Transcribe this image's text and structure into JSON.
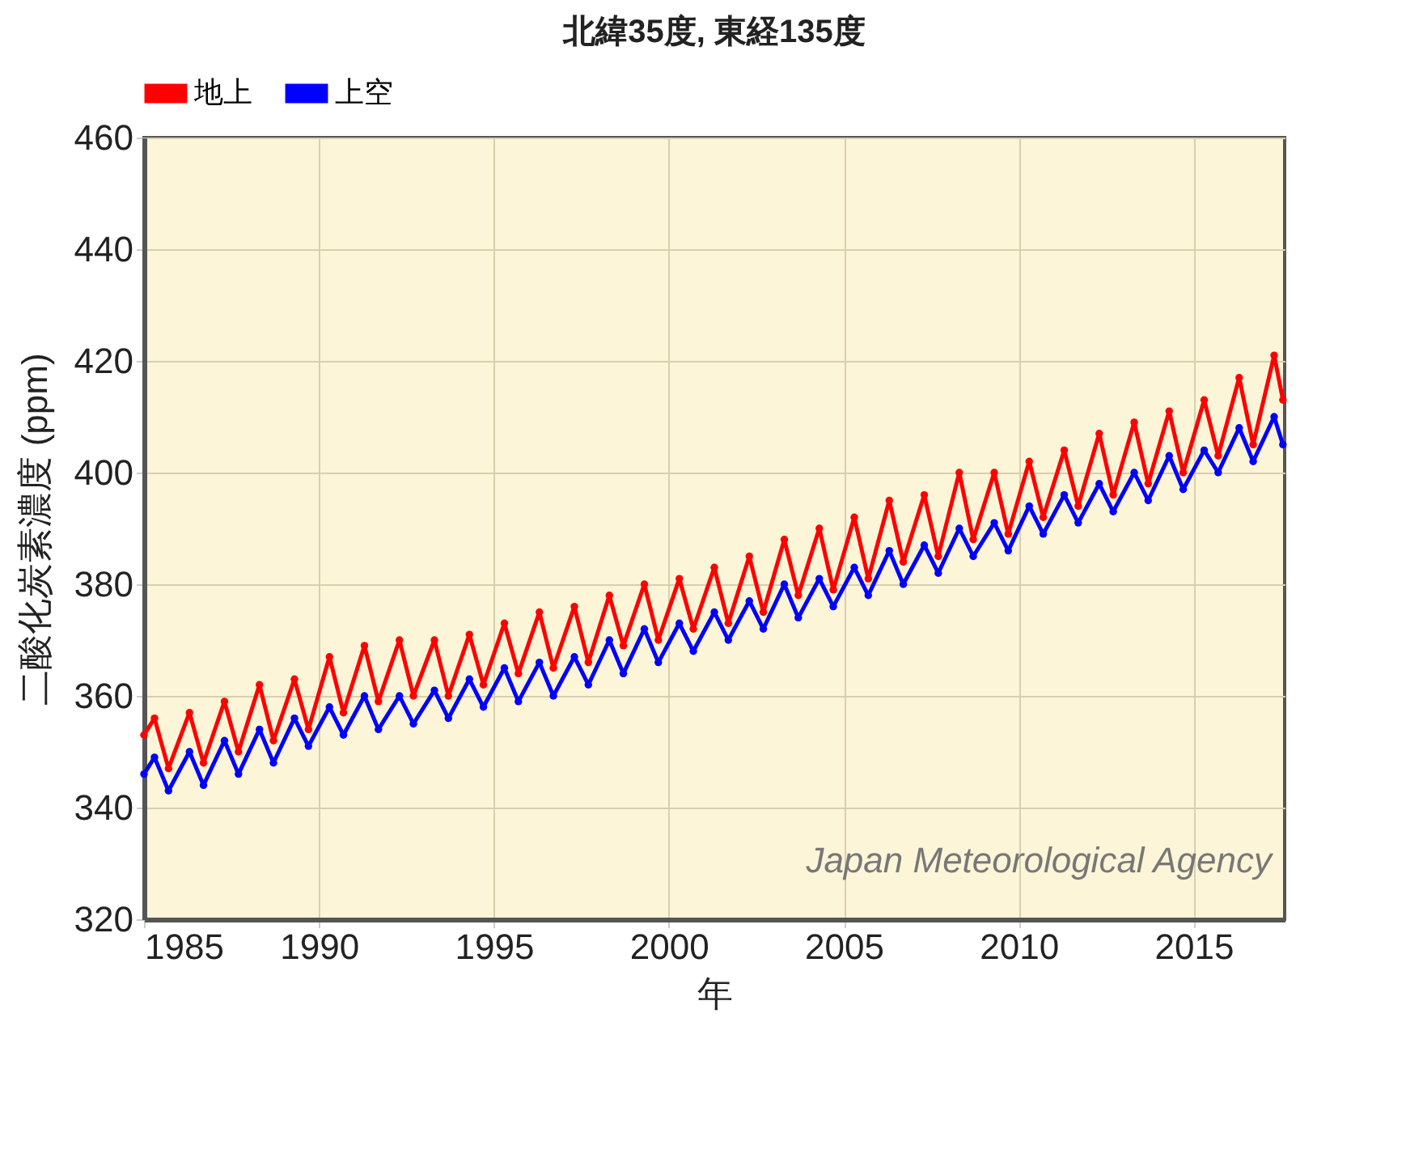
{
  "chart_data": {
    "type": "line",
    "title": "北緯35度, 東経135度",
    "xlabel": "年",
    "ylabel": "二酸化炭素濃度 (ppm)",
    "annotations": [
      "Japan Meteorological Agency"
    ],
    "xlim": [
      1985,
      2017.6
    ],
    "xticks": [
      1985,
      1990,
      1995,
      2000,
      2005,
      2010,
      2015
    ],
    "ylim": [
      320,
      460
    ],
    "yticks": [
      320,
      340,
      360,
      380,
      400,
      420,
      440,
      460
    ],
    "grid": true,
    "legend": "top",
    "marker": "circle",
    "line_style": "solid",
    "x": [
      1985,
      1985.3,
      1985.7,
      1986.3,
      1986.7,
      1987.3,
      1987.7,
      1988.3,
      1988.7,
      1989.3,
      1989.7,
      1990.3,
      1990.7,
      1991.3,
      1991.7,
      1992.3,
      1992.7,
      1993.3,
      1993.7,
      1994.3,
      1994.7,
      1995.3,
      1995.7,
      1996.3,
      1996.7,
      1997.3,
      1997.7,
      1998.3,
      1998.7,
      1999.3,
      1999.7,
      2000.3,
      2000.7,
      2001.3,
      2001.7,
      2002.3,
      2002.7,
      2003.3,
      2003.7,
      2004.3,
      2004.7,
      2005.3,
      2005.7,
      2006.3,
      2006.7,
      2007.3,
      2007.7,
      2008.3,
      2008.7,
      2009.3,
      2009.7,
      2010.3,
      2010.7,
      2011.3,
      2011.7,
      2012.3,
      2012.7,
      2013.3,
      2013.7,
      2014.3,
      2014.7,
      2015.3,
      2015.7,
      2016.3,
      2016.7,
      2017.3,
      2017.55
    ],
    "series": [
      {
        "name": "地上",
        "color": "#ff0000",
        "values": [
          353,
          356,
          347,
          357,
          348,
          359,
          350,
          362,
          352,
          363,
          354,
          367,
          357,
          369,
          359,
          370,
          360,
          370,
          360,
          371,
          362,
          373,
          364,
          375,
          365,
          376,
          366,
          378,
          369,
          380,
          370,
          381,
          372,
          383,
          373,
          385,
          375,
          388,
          378,
          390,
          379,
          392,
          381,
          395,
          384,
          396,
          385,
          400,
          388,
          400,
          389,
          402,
          392,
          404,
          394,
          407,
          396,
          409,
          398,
          411,
          400,
          413,
          403,
          417,
          405,
          421,
          413
        ]
      },
      {
        "name": "上空",
        "color": "#0000ff",
        "values": [
          346,
          349,
          343,
          350,
          344,
          352,
          346,
          354,
          348,
          356,
          351,
          358,
          353,
          360,
          354,
          360,
          355,
          361,
          356,
          363,
          358,
          365,
          359,
          366,
          360,
          367,
          362,
          370,
          364,
          372,
          366,
          373,
          368,
          375,
          370,
          377,
          372,
          380,
          374,
          381,
          376,
          383,
          378,
          386,
          380,
          387,
          382,
          390,
          385,
          391,
          386,
          394,
          389,
          396,
          391,
          398,
          393,
          400,
          395,
          403,
          397,
          404,
          400,
          408,
          402,
          410,
          405
        ]
      }
    ]
  }
}
